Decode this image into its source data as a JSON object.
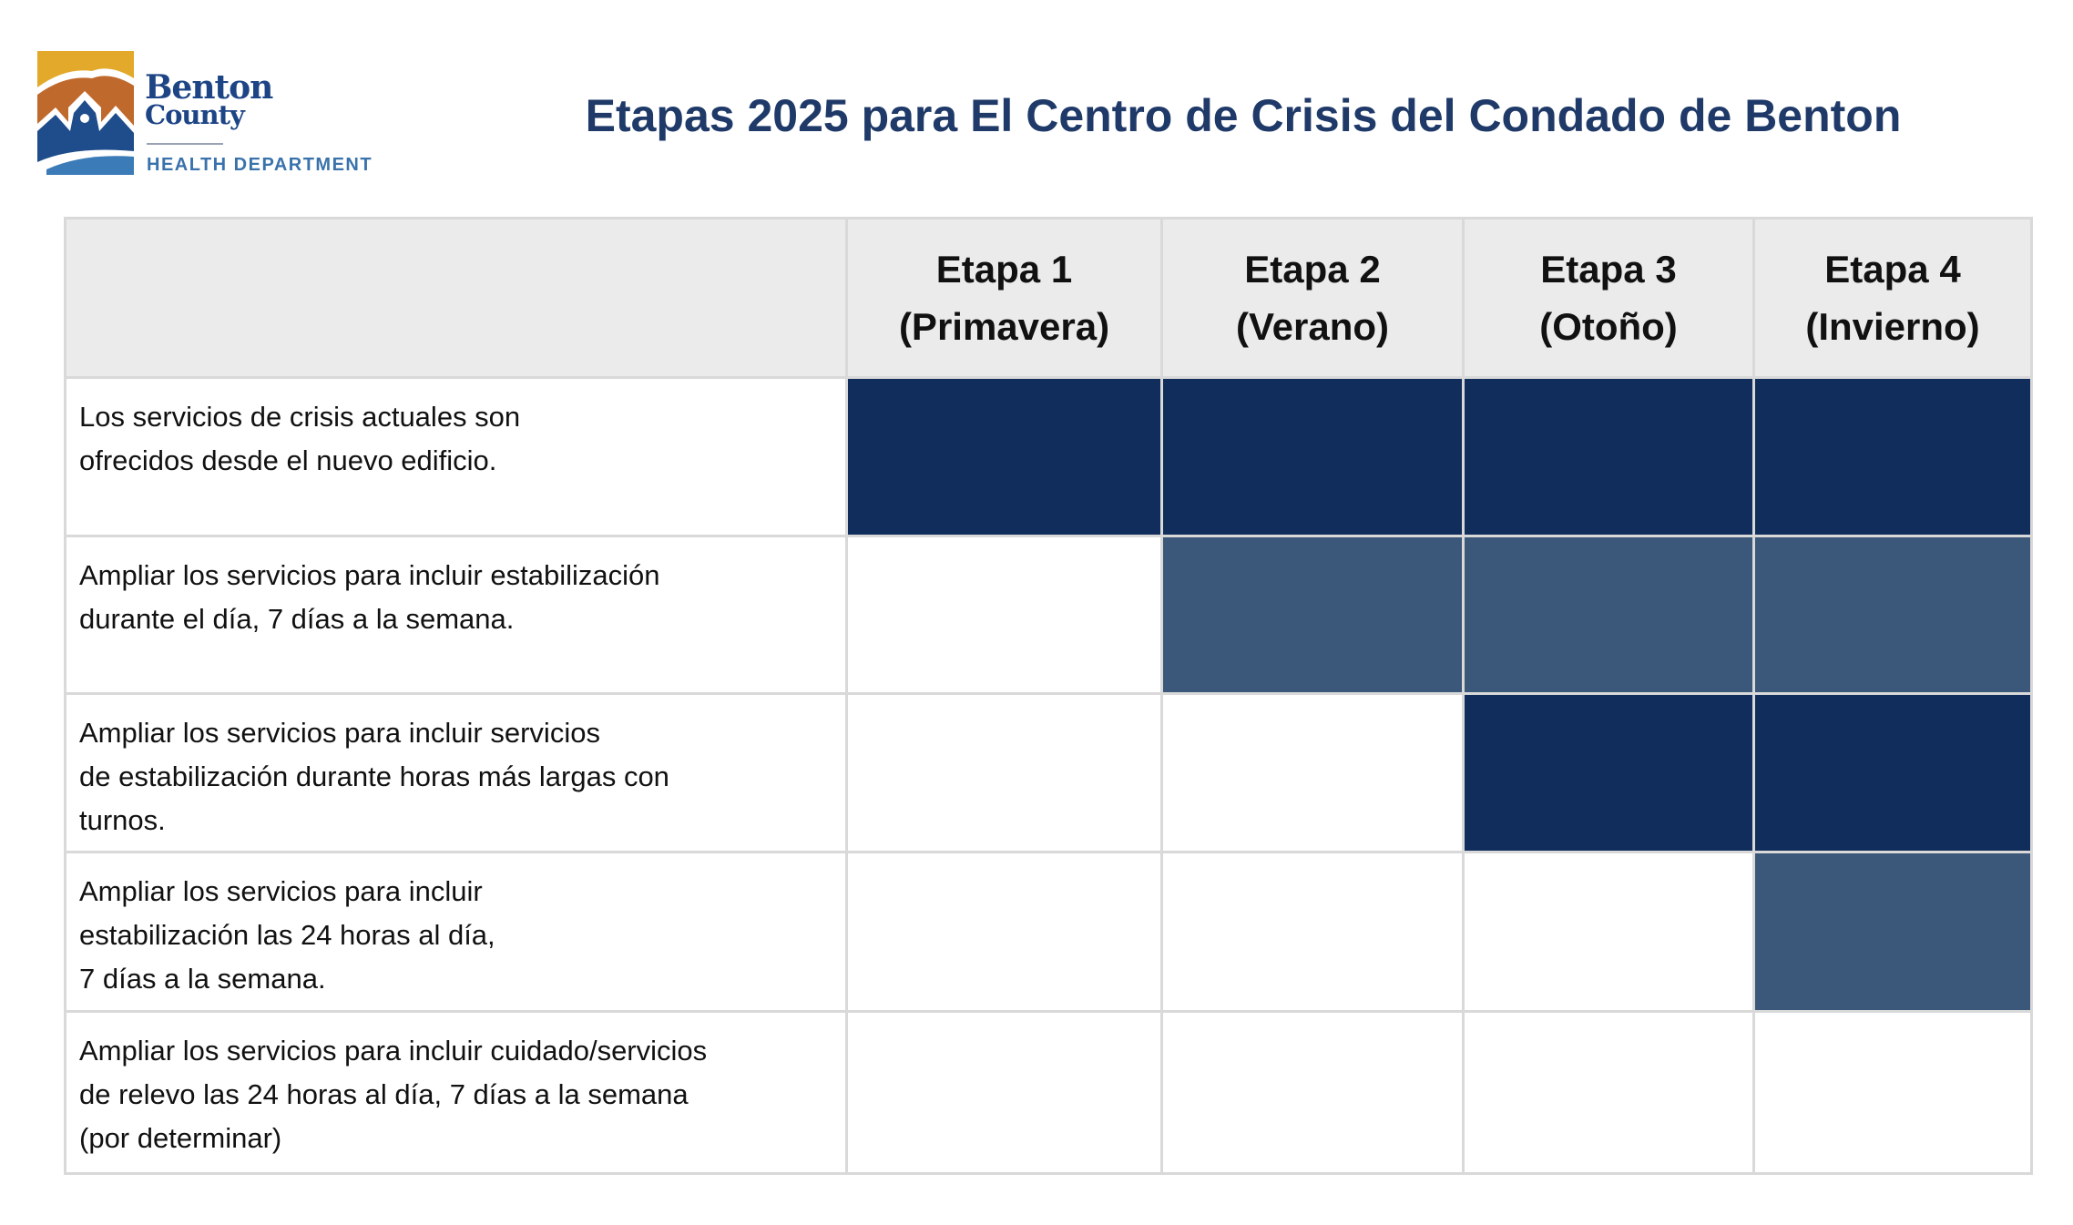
{
  "logo": {
    "name_line1": "Benton",
    "name_line2": "County",
    "department": "HEALTH DEPARTMENT"
  },
  "title": "Etapas 2025 para El Centro de Crisis del Condado de Benton",
  "colors": {
    "dark": "#112d5c",
    "medium": "#3b5779",
    "header_bg": "#ebebeb",
    "title": "#1f3a68"
  },
  "columns": [
    {
      "line1": "Etapa 1",
      "line2": "(Primavera)"
    },
    {
      "line1": "Etapa 2",
      "line2": "(Verano)"
    },
    {
      "line1": "Etapa 3",
      "line2": "(Otoño)"
    },
    {
      "line1": "Etapa 4",
      "line2": "(Invierno)"
    }
  ],
  "rows": [
    {
      "lines": [
        "Los servicios de crisis actuales son",
        "ofrecidos desde el nuevo edificio."
      ],
      "cells": [
        "dark",
        "dark",
        "dark",
        "dark"
      ]
    },
    {
      "lines": [
        "Ampliar los servicios para incluir estabilización",
        "durante el día, 7 días a la semana."
      ],
      "cells": [
        "empty",
        "mid",
        "mid",
        "mid"
      ]
    },
    {
      "lines": [
        "Ampliar los servicios para incluir servicios",
        "de estabilización durante horas más largas con",
        "turnos."
      ],
      "cells": [
        "empty",
        "empty",
        "dark",
        "dark"
      ]
    },
    {
      "lines": [
        "Ampliar los servicios para incluir",
        "estabilización las 24 horas al día,",
        "7 días a la semana."
      ],
      "cells": [
        "empty",
        "empty",
        "empty",
        "mid"
      ]
    },
    {
      "lines": [
        "Ampliar los servicios para incluir cuidado/servicios",
        "de relevo las 24 horas al día, 7 días a la semana",
        "(por determinar)"
      ],
      "cells": [
        "empty",
        "empty",
        "empty",
        "empty"
      ]
    }
  ]
}
